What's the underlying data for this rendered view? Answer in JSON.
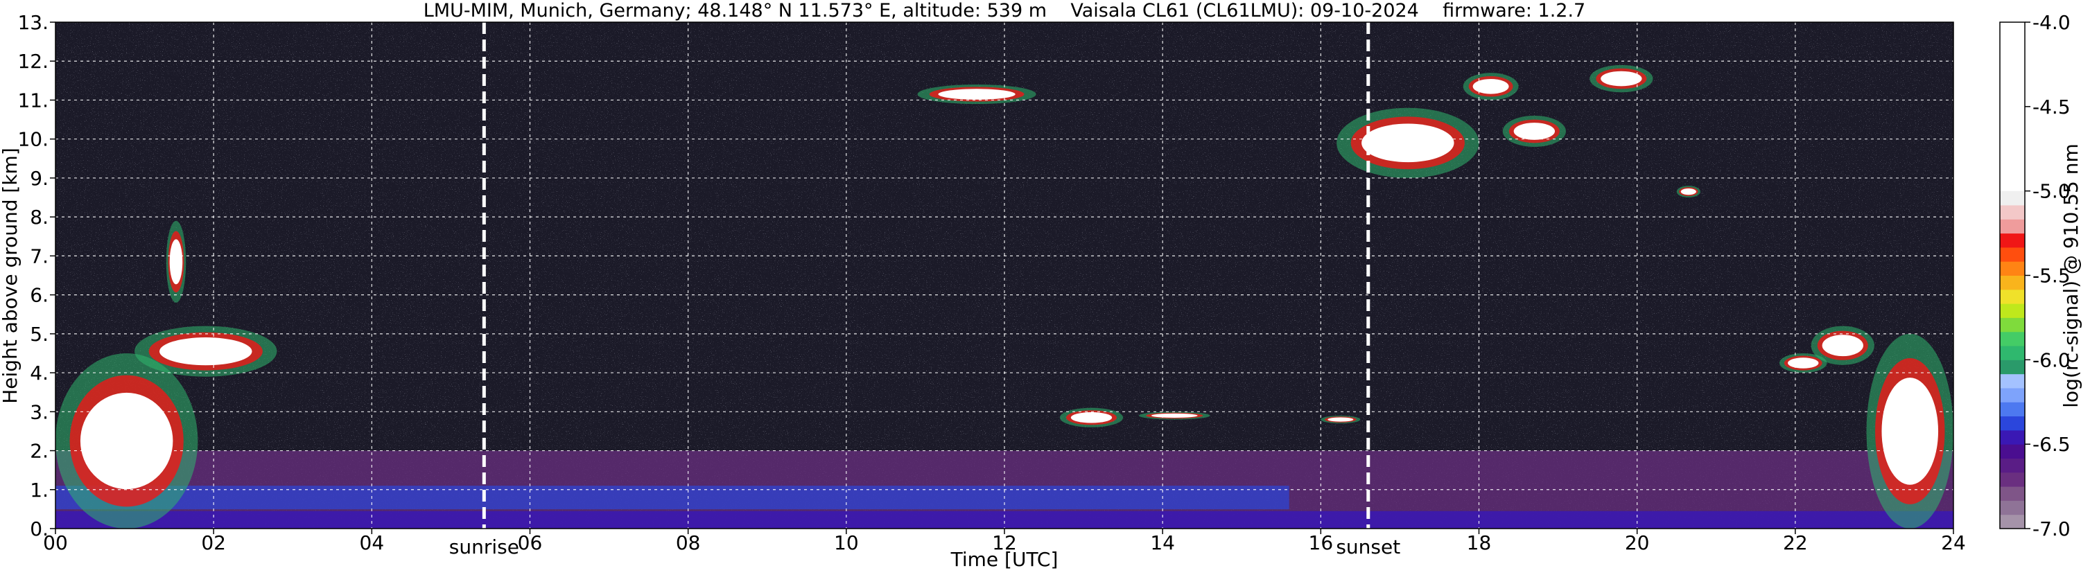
{
  "chart_data": {
    "type": "heatmap",
    "title": "LMU-MIM, Munich, Germany; 48.148° N 11.573° E, altitude: 539 m    Vaisala CL61 (CL61LMU): 09-10-2024    firmware: 1.2.7",
    "xlabel": "Time [UTC]",
    "ylabel": "Height above ground [km]",
    "xlim": [
      0,
      24
    ],
    "ylim": [
      0,
      13
    ],
    "x_ticks": [
      "00",
      "02",
      "04",
      "06",
      "08",
      "10",
      "12",
      "14",
      "16",
      "18",
      "20",
      "22",
      "24"
    ],
    "y_ticks": [
      "0.",
      "1.",
      "2.",
      "3.",
      "4.",
      "5.",
      "6.",
      "7.",
      "8.",
      "9.",
      "10.",
      "11.",
      "12.",
      "13."
    ],
    "grid": true,
    "events": [
      {
        "label": "sunrise",
        "time": 5.42
      },
      {
        "label": "sunset",
        "time": 16.6
      }
    ],
    "colorbar": {
      "label": "log(rc-signal) @ 910.55 nm",
      "range": [
        -7.0,
        -4.0
      ],
      "ticks": [
        "-4.0",
        "-4.5",
        "-5.0",
        "-5.5",
        "-6.0",
        "-6.5",
        "-7.0"
      ],
      "colors": [
        "#a593a9",
        "#8f7397",
        "#7f5588",
        "#6a2f80",
        "#5a1d86",
        "#4a0e90",
        "#3a18b4",
        "#2b46dc",
        "#4d79f0",
        "#7ea3fb",
        "#a4c2ff",
        "#2a9a6a",
        "#2fb86e",
        "#44cc66",
        "#7fdb3c",
        "#bfe81c",
        "#f0e12a",
        "#f9b41c",
        "#ff8414",
        "#ff4e0e",
        "#f01616",
        "#ef9c9c",
        "#f3c8c8",
        "#f0f0f0",
        "#ffffff"
      ]
    },
    "features": [
      {
        "type": "planetary_boundary_layer",
        "t_start": 0,
        "t_end": 24,
        "h_min": 0.0,
        "h_max": 2.0
      },
      {
        "type": "cloud",
        "t_start": 0,
        "t_end": 1.8,
        "h_min": 0.0,
        "h_max": 4.5
      },
      {
        "type": "cloud",
        "t_start": 1.0,
        "t_end": 2.8,
        "h_min": 3.9,
        "h_max": 5.2
      },
      {
        "type": "cloud",
        "t_start": 1.4,
        "t_end": 1.65,
        "h_min": 5.8,
        "h_max": 7.9
      },
      {
        "type": "cloud",
        "t_start": 12.7,
        "t_end": 13.5,
        "h_min": 2.6,
        "h_max": 3.1
      },
      {
        "type": "cloud",
        "t_start": 13.7,
        "t_end": 14.6,
        "h_min": 2.8,
        "h_max": 3.0
      },
      {
        "type": "cloud",
        "t_start": 16.0,
        "t_end": 16.5,
        "h_min": 2.7,
        "h_max": 2.9
      },
      {
        "type": "cloud",
        "t_start": 10.9,
        "t_end": 12.4,
        "h_min": 10.9,
        "h_max": 11.4
      },
      {
        "type": "cloud",
        "t_start": 16.2,
        "t_end": 18.0,
        "h_min": 9.0,
        "h_max": 10.8
      },
      {
        "type": "cloud",
        "t_start": 17.8,
        "t_end": 18.5,
        "h_min": 11.0,
        "h_max": 11.7
      },
      {
        "type": "cloud",
        "t_start": 18.3,
        "t_end": 19.1,
        "h_min": 9.8,
        "h_max": 10.6
      },
      {
        "type": "cloud",
        "t_start": 19.4,
        "t_end": 20.2,
        "h_min": 11.2,
        "h_max": 11.9
      },
      {
        "type": "cloud",
        "t_start": 20.5,
        "t_end": 20.8,
        "h_min": 8.5,
        "h_max": 8.8
      },
      {
        "type": "cloud",
        "t_start": 21.8,
        "t_end": 22.4,
        "h_min": 4.0,
        "h_max": 4.5
      },
      {
        "type": "cloud",
        "t_start": 22.2,
        "t_end": 23.0,
        "h_min": 4.2,
        "h_max": 5.2
      },
      {
        "type": "cloud",
        "t_start": 22.9,
        "t_end": 24.0,
        "h_min": 0.0,
        "h_max": 5.0
      }
    ]
  }
}
